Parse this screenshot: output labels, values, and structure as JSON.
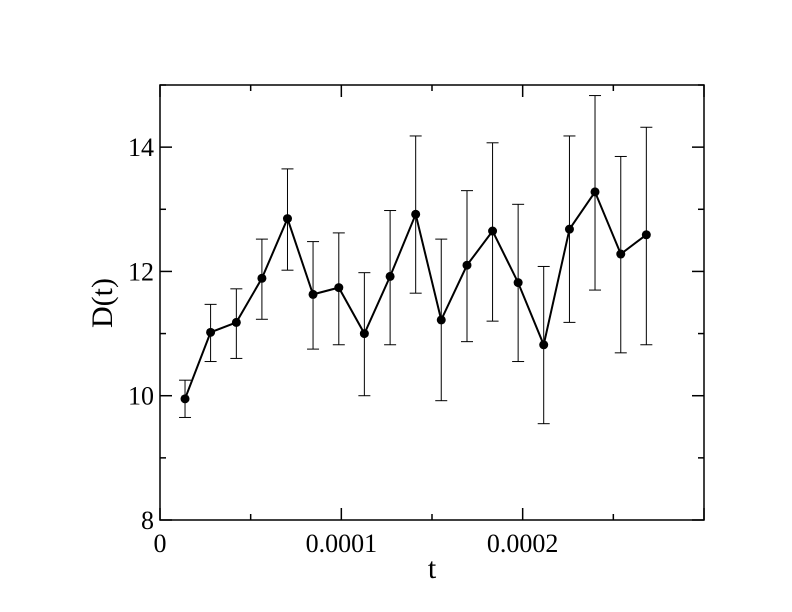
{
  "chart_data": {
    "type": "line",
    "xlabel": "t",
    "ylabel": "D(t)",
    "xlim": [
      0,
      0.0003
    ],
    "ylim": [
      8,
      15
    ],
    "x_ticks": [
      0,
      0.0001,
      0.0002
    ],
    "x_tick_labels": [
      "0",
      "0.0001",
      "0.0002"
    ],
    "y_ticks": [
      8,
      10,
      12,
      14
    ],
    "y_tick_labels": [
      "8",
      "10",
      "12",
      "14"
    ],
    "grid": false,
    "series": [
      {
        "x": [
          1.38e-05,
          2.79e-05,
          4.21e-05,
          5.62e-05,
          7.03e-05,
          8.44e-05,
          9.86e-05,
          0.0001127,
          0.0001269,
          0.000141,
          0.0001551,
          0.0001693,
          0.0001834,
          0.0001975,
          0.0002116,
          0.0002258,
          0.0002399,
          0.0002541,
          0.0002682
        ],
        "y": [
          9.95,
          11.02,
          11.18,
          11.89,
          12.85,
          11.63,
          11.74,
          11.0,
          11.92,
          12.92,
          11.22,
          12.1,
          12.65,
          11.82,
          10.82,
          12.68,
          13.28,
          12.28,
          12.59
        ],
        "err_low": [
          9.65,
          10.55,
          10.6,
          11.23,
          12.02,
          10.75,
          10.82,
          10.0,
          10.82,
          11.65,
          9.92,
          10.87,
          11.2,
          10.55,
          9.55,
          11.18,
          11.7,
          10.69,
          10.82
        ],
        "err_high": [
          10.25,
          11.47,
          11.72,
          12.52,
          13.65,
          12.48,
          12.62,
          11.98,
          12.98,
          14.18,
          12.52,
          13.3,
          14.07,
          13.08,
          12.08,
          14.18,
          14.83,
          13.85,
          14.32
        ],
        "color": "#000000",
        "marker": "circle"
      }
    ]
  }
}
